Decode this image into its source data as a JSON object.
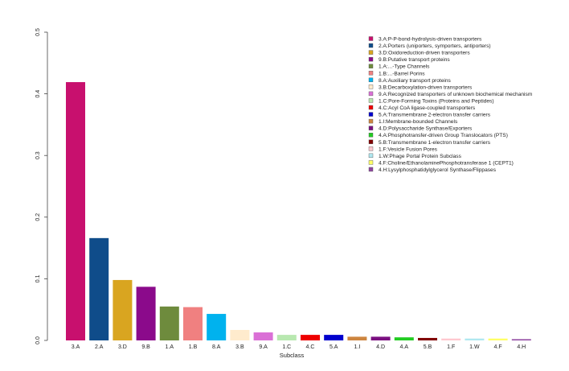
{
  "chart_data": {
    "type": "bar",
    "title": "",
    "xlabel": "Subclass",
    "ylabel": "",
    "ylim": [
      0,
      0.5
    ],
    "yticks": [
      "0.0",
      "0.1",
      "0.2",
      "0.3",
      "0.4",
      "0.5"
    ],
    "grid": false,
    "legend_position": "top-right",
    "categories": [
      "3.A",
      "2.A",
      "3.D",
      "9.B",
      "1.A",
      "1.B",
      "8.A",
      "3.B",
      "9.A",
      "1.C",
      "4.C",
      "5.A",
      "1.I",
      "4.D",
      "4.A",
      "5.B",
      "1.F",
      "1.W",
      "4.F",
      "4.H"
    ],
    "values": [
      0.419,
      0.166,
      0.098,
      0.087,
      0.055,
      0.054,
      0.043,
      0.017,
      0.013,
      0.009,
      0.009,
      0.009,
      0.006,
      0.006,
      0.005,
      0.004,
      0.003,
      0.003,
      0.003,
      0.002
    ],
    "colors": [
      "#C8106E",
      "#0F4C8A",
      "#D9A520",
      "#8B0A8B",
      "#6E8B3D",
      "#F08080",
      "#00B2EE",
      "#FFEBCD",
      "#DA70D6",
      "#B8E8B0",
      "#EE0000",
      "#0000CD",
      "#CD853F",
      "#7A1080",
      "#22CC22",
      "#800000",
      "#FFC8CF",
      "#B0E8F0",
      "#FFFF66",
      "#8E44A0"
    ],
    "legend": [
      "3.A:P-P-bond-hydrolysis-driven transporters",
      "2.A:Porters (uniporters, symporters, antiporters)",
      "3.D:Oxidoreduction-driven transporters",
      "9.B:Putative transport proteins",
      "1.A:...-Type Channels",
      "1.B:...-Barrel Porins",
      "8.A:Auxiliary transport proteins",
      "3.B:Decarboxylation-driven transporters",
      "9.A:Recognized transporters of unknown biochemical mechanism",
      "1.C:Pore-Forming Toxins (Proteins and Peptides)",
      "4.C:Acyl CoA ligase-coupled transporters",
      "5.A:Transmembrane 2-electron transfer carriers",
      "1.I:Membrane-bounded Channels",
      "4.D:Polysaccharide Synthase/Exporters",
      "4.A:Phosphotransfer-driven Group Translocators (PTS)",
      "5.B:Transmembrane 1-electron transfer carriers",
      "1.F:Vesicle Fusion Pores",
      "1.W:Phage Portal Protein Subclass",
      "4.F:Choline/EthanolaminePhosphotransferase 1 (CEPT1)",
      "4.H:Lysylphosphatidylglycerol Synthase/Flippases"
    ]
  }
}
